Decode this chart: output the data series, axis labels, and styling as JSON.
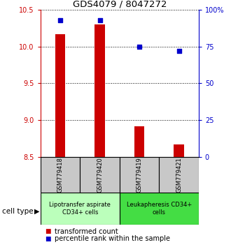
{
  "title": "GDS4079 / 8047272",
  "samples": [
    "GSM779418",
    "GSM779420",
    "GSM779419",
    "GSM779421"
  ],
  "transformed_counts": [
    10.17,
    10.3,
    8.92,
    8.67
  ],
  "percentile_ranks": [
    93,
    93,
    75,
    72
  ],
  "ylim_left": [
    8.5,
    10.5
  ],
  "ylim_right": [
    0,
    100
  ],
  "yticks_left": [
    8.5,
    9.0,
    9.5,
    10.0,
    10.5
  ],
  "yticks_right": [
    0,
    25,
    50,
    75,
    100
  ],
  "ytick_labels_right": [
    "0",
    "25",
    "50",
    "75",
    "100%"
  ],
  "bar_color": "#cc0000",
  "dot_color": "#0000cc",
  "bar_bottom": 8.5,
  "bar_width": 0.25,
  "groups": [
    {
      "label": "Lipotransfer aspirate\nCD34+ cells",
      "samples": [
        0,
        1
      ],
      "color": "#bbffbb"
    },
    {
      "label": "Leukapheresis CD34+\ncells",
      "samples": [
        2,
        3
      ],
      "color": "#44dd44"
    }
  ],
  "cell_type_label": "cell type",
  "legend_items": [
    {
      "color": "#cc0000",
      "label": "transformed count"
    },
    {
      "color": "#0000cc",
      "label": "percentile rank within the sample"
    }
  ],
  "background_color": "#ffffff",
  "plot_bg_color": "#ffffff",
  "header_bg_color": "#c8c8c8",
  "title_fontsize": 9.5,
  "tick_fontsize": 7,
  "sample_fontsize": 6,
  "group_fontsize": 6,
  "legend_fontsize": 7
}
